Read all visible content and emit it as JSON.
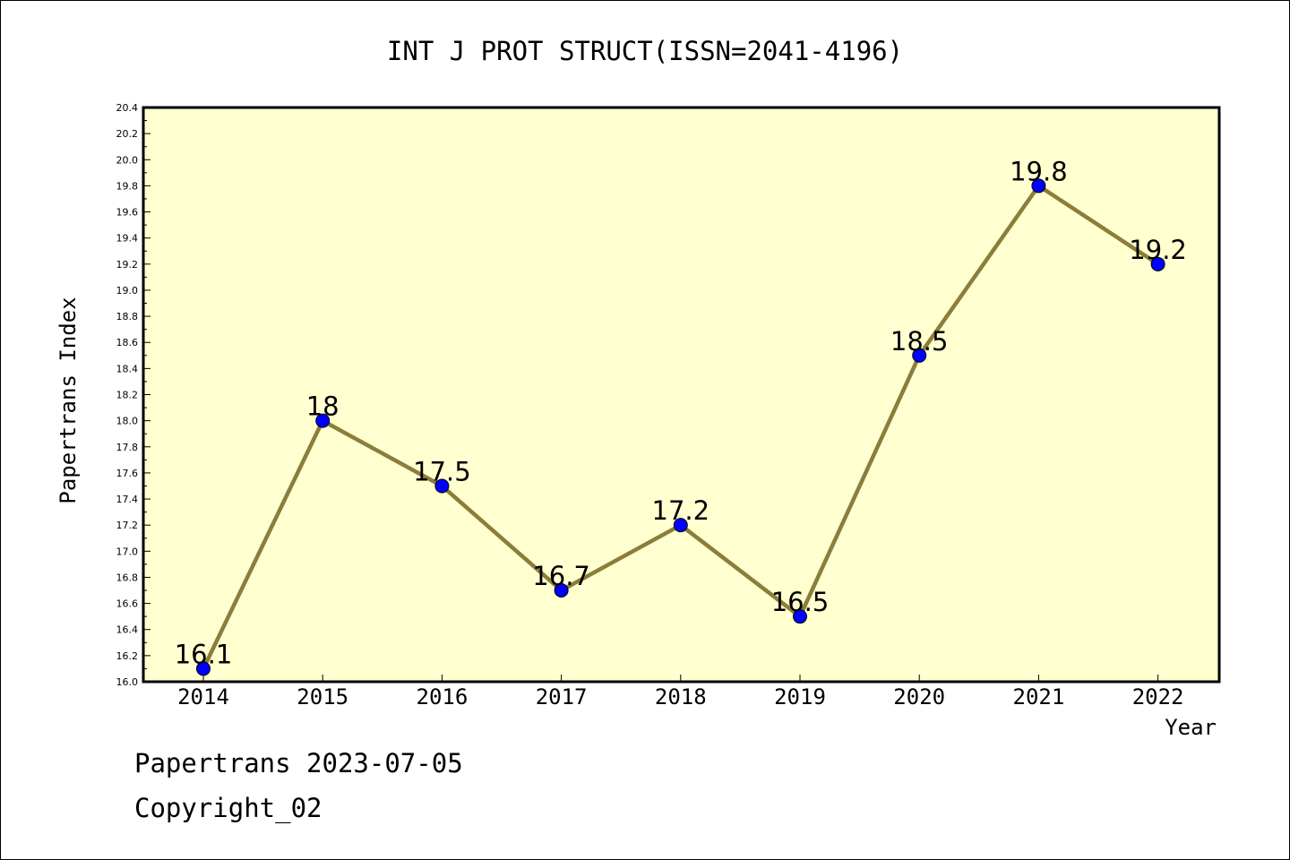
{
  "chart_data": {
    "type": "line",
    "title": "INT J PROT STRUCT(ISSN=2041-4196)",
    "xlabel": "Year",
    "ylabel": "Papertrans Index",
    "categories": [
      "2014",
      "2015",
      "2016",
      "2017",
      "2018",
      "2019",
      "2020",
      "2021",
      "2022"
    ],
    "values": [
      16.1,
      18,
      17.5,
      16.7,
      17.2,
      16.5,
      18.5,
      19.8,
      19.2
    ],
    "data_labels": [
      "16.1",
      "18",
      "17.5",
      "16.7",
      "17.2",
      "16.5",
      "18.5",
      "19.8",
      "19.2"
    ],
    "ylim": [
      16.0,
      20.4
    ],
    "yticks": [
      "16.0",
      "16.2",
      "16.4",
      "16.6",
      "16.8",
      "17.0",
      "17.2",
      "17.4",
      "17.6",
      "17.8",
      "18.0",
      "18.2",
      "18.4",
      "18.6",
      "18.8",
      "19.0",
      "19.2",
      "19.4",
      "19.6",
      "19.8",
      "20.0",
      "20.2",
      "20.4"
    ],
    "grid": false,
    "colors": {
      "line": "#8b7d3a",
      "marker": "#0000ff",
      "plot_background": "#ffffd0"
    }
  },
  "footer": {
    "line1": "Papertrans 2023-07-05",
    "line2": "Copyright_02"
  }
}
